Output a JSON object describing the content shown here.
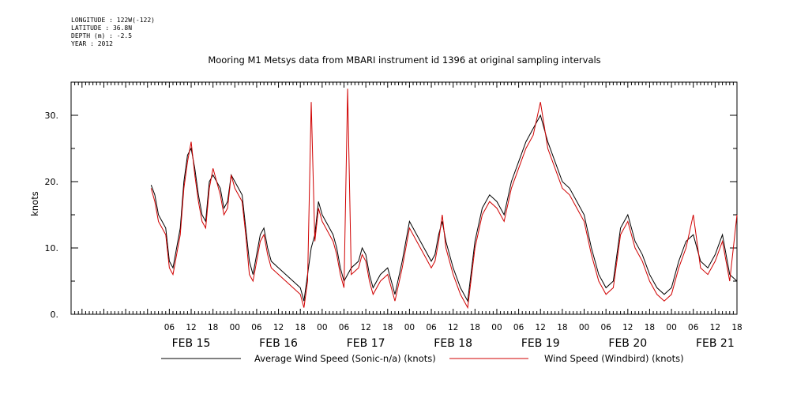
{
  "meta": {
    "longitude": "LONGITUDE : 122W(-122)",
    "latitude": "LATITUDE : 36.8N",
    "depth": "DEPTH (m) : -2.5",
    "year": "YEAR : 2012"
  },
  "chart_data": {
    "type": "line",
    "title": "Mooring M1 Metsys data from MBARI instrument id 1396 at original sampling intervals",
    "ylabel": "knots",
    "ylim": [
      0,
      35
    ],
    "xlim": [
      -21,
      162
    ],
    "y_ticks": [
      0,
      10,
      20,
      30
    ],
    "y_tick_labels": [
      "0.",
      "10.",
      "20.",
      "30."
    ],
    "x_tick_labels": [
      {
        "t": 6,
        "label": "06"
      },
      {
        "t": 12,
        "label": "12"
      },
      {
        "t": 18,
        "label": "18"
      },
      {
        "t": 24,
        "label": "00"
      },
      {
        "t": 30,
        "label": "06"
      },
      {
        "t": 36,
        "label": "12"
      },
      {
        "t": 42,
        "label": "18"
      },
      {
        "t": 48,
        "label": "00"
      },
      {
        "t": 54,
        "label": "06"
      },
      {
        "t": 60,
        "label": "12"
      },
      {
        "t": 66,
        "label": "18"
      },
      {
        "t": 72,
        "label": "00"
      },
      {
        "t": 78,
        "label": "06"
      },
      {
        "t": 84,
        "label": "12"
      },
      {
        "t": 90,
        "label": "18"
      },
      {
        "t": 96,
        "label": "00"
      },
      {
        "t": 102,
        "label": "06"
      },
      {
        "t": 108,
        "label": "12"
      },
      {
        "t": 114,
        "label": "18"
      },
      {
        "t": 120,
        "label": "00"
      },
      {
        "t": 126,
        "label": "06"
      },
      {
        "t": 132,
        "label": "12"
      },
      {
        "t": 138,
        "label": "18"
      },
      {
        "t": 144,
        "label": "00"
      },
      {
        "t": 150,
        "label": "06"
      },
      {
        "t": 156,
        "label": "12"
      },
      {
        "t": 162,
        "label": "18"
      }
    ],
    "day_labels": [
      {
        "t": 12,
        "label": "FEB 15"
      },
      {
        "t": 36,
        "label": "FEB 16"
      },
      {
        "t": 60,
        "label": "FEB 17"
      },
      {
        "t": 84,
        "label": "FEB 18"
      },
      {
        "t": 108,
        "label": "FEB 19"
      },
      {
        "t": 132,
        "label": "FEB 20"
      },
      {
        "t": 156,
        "label": "FEB 21"
      }
    ],
    "series": [
      {
        "name": "Average Wind Speed (Sonic-n/a) (knots)",
        "color": "#000000",
        "x": [
          1,
          2,
          3,
          4,
          5,
          6,
          7,
          8,
          9,
          10,
          11,
          12,
          13,
          14,
          15,
          16,
          17,
          18,
          19,
          20,
          21,
          22,
          23,
          24,
          25,
          26,
          27,
          28,
          29,
          30,
          31,
          32,
          33,
          34,
          36,
          40,
          42,
          43,
          44,
          45,
          46,
          47,
          48,
          49,
          50,
          51,
          52,
          53,
          54,
          55,
          56,
          58,
          59,
          60,
          61,
          62,
          64,
          66,
          68,
          70,
          72,
          74,
          76,
          78,
          79,
          80,
          81,
          82,
          84,
          86,
          88,
          90,
          92,
          94,
          96,
          98,
          100,
          102,
          104,
          106,
          108,
          110,
          112,
          114,
          116,
          118,
          120,
          122,
          124,
          126,
          128,
          130,
          132,
          134,
          136,
          138,
          140,
          142,
          144,
          146,
          148,
          150,
          152,
          154,
          156,
          158,
          160,
          162
        ],
        "y": [
          19.5,
          18,
          15,
          14,
          13,
          8,
          7,
          10,
          13,
          20,
          24,
          25,
          22,
          18,
          15,
          14,
          20,
          21,
          20,
          19,
          16,
          17,
          21,
          20,
          19,
          18,
          13,
          8,
          6,
          9,
          12,
          13,
          10,
          8,
          7,
          5,
          4,
          2,
          6,
          10,
          12,
          17,
          15,
          14,
          13,
          12,
          10,
          7,
          5,
          6,
          7,
          8,
          10,
          9,
          6,
          4,
          6,
          7,
          3,
          8,
          14,
          12,
          10,
          8,
          9,
          12,
          14,
          11,
          7,
          4,
          2,
          11,
          16,
          18,
          17,
          15,
          20,
          23,
          26,
          28,
          30,
          26,
          23,
          20,
          19,
          17,
          15,
          10,
          6,
          4,
          5,
          13,
          15,
          11,
          9,
          6,
          4,
          3,
          4,
          8,
          11,
          12,
          8,
          7,
          9,
          12,
          6,
          5
        ]
      },
      {
        "name": "Wind Speed (Windbird) (knots)",
        "color": "#d00000",
        "x": [
          1,
          2,
          3,
          4,
          5,
          6,
          7,
          8,
          9,
          10,
          11,
          12,
          13,
          14,
          15,
          16,
          17,
          18,
          19,
          20,
          21,
          22,
          23,
          24,
          25,
          26,
          27,
          28,
          29,
          30,
          31,
          32,
          33,
          34,
          36,
          40,
          42,
          43,
          44,
          45,
          46,
          47,
          48,
          49,
          50,
          51,
          52,
          53,
          54,
          55,
          56,
          58,
          59,
          60,
          61,
          62,
          64,
          66,
          68,
          70,
          72,
          74,
          76,
          78,
          79,
          80,
          81,
          82,
          84,
          86,
          88,
          90,
          92,
          94,
          96,
          98,
          100,
          102,
          104,
          106,
          108,
          110,
          112,
          114,
          116,
          118,
          120,
          122,
          124,
          126,
          128,
          130,
          132,
          134,
          136,
          138,
          140,
          142,
          144,
          146,
          148,
          150,
          152,
          154,
          156,
          158,
          160,
          162
        ],
        "y": [
          19,
          17,
          14,
          13,
          12,
          7,
          6,
          9,
          12,
          19,
          23,
          26,
          21,
          17,
          14,
          13,
          19,
          22,
          20,
          18,
          15,
          16,
          21,
          19,
          18,
          17,
          12,
          6,
          5,
          8,
          11,
          12,
          9,
          7,
          6,
          4,
          3,
          1,
          5,
          32,
          11,
          16,
          14,
          13,
          12,
          11,
          9,
          6,
          4,
          34,
          6,
          7,
          9,
          8,
          5,
          3,
          5,
          6,
          2,
          7,
          13,
          11,
          9,
          7,
          8,
          11,
          15,
          10,
          6,
          3,
          1,
          10,
          15,
          17,
          16,
          14,
          19,
          22,
          25,
          27,
          32,
          25,
          22,
          19,
          18,
          16,
          14,
          9,
          5,
          3,
          4,
          12,
          14,
          10,
          8,
          5,
          3,
          2,
          3,
          7,
          10,
          15,
          7,
          6,
          8,
          11,
          5,
          15
        ]
      }
    ]
  }
}
